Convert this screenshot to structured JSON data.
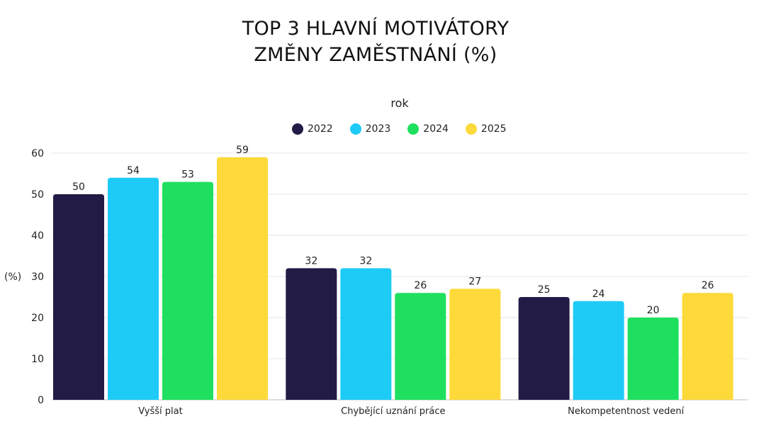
{
  "chart_data": {
    "type": "bar",
    "title": [
      "TOP 3 HLAVNÍ MOTIVÁTORY",
      "ZMĚNY ZAMĚSTNÁNÍ (%)"
    ],
    "legend_title": "rok",
    "legend_position": "top",
    "ylabel": "(%)",
    "xlabel": "",
    "ylim": [
      0,
      60
    ],
    "yticks": [
      0,
      10,
      20,
      30,
      40,
      50,
      60
    ],
    "grid": true,
    "categories": [
      "Vyšší plat",
      "Chybějící uznání práce",
      "Nekompetentnost vedení"
    ],
    "series": [
      {
        "name": "2022",
        "color": "#221b45",
        "values": [
          50,
          32,
          25
        ]
      },
      {
        "name": "2023",
        "color": "#1ecbf6",
        "values": [
          54,
          32,
          24
        ]
      },
      {
        "name": "2024",
        "color": "#1ee05e",
        "values": [
          53,
          26,
          20
        ]
      },
      {
        "name": "2025",
        "color": "#fdd93a",
        "values": [
          59,
          27,
          26
        ]
      }
    ]
  }
}
